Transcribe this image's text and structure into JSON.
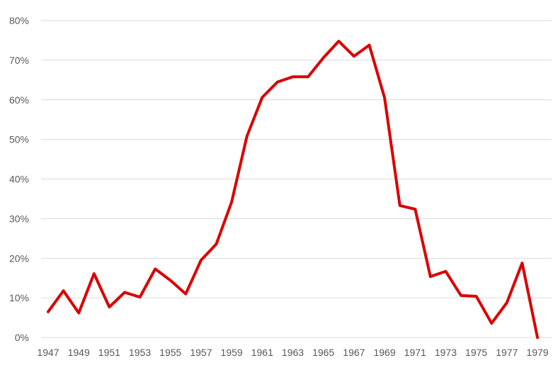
{
  "chart_data": {
    "type": "line",
    "title": "",
    "xlabel": "",
    "ylabel": "",
    "x": [
      1947,
      1948,
      1949,
      1950,
      1951,
      1952,
      1953,
      1954,
      1955,
      1956,
      1957,
      1958,
      1959,
      1960,
      1961,
      1962,
      1963,
      1964,
      1965,
      1966,
      1967,
      1968,
      1969,
      1970,
      1971,
      1972,
      1973,
      1974,
      1975,
      1976,
      1977,
      1978,
      1979
    ],
    "x_tick_labels": [
      "1947",
      "1949",
      "1951",
      "1953",
      "1955",
      "1957",
      "1959",
      "1961",
      "1963",
      "1965",
      "1967",
      "1969",
      "1971",
      "1973",
      "1975",
      "1977",
      "1979"
    ],
    "y_tick_labels": [
      "0%",
      "10%",
      "20%",
      "30%",
      "40%",
      "50%",
      "60%",
      "70%",
      "80%"
    ],
    "ylim": [
      0,
      80
    ],
    "y_unit": "percent",
    "grid": "horizontal",
    "legend": "none",
    "series": [
      {
        "color": "#d90000",
        "values": [
          6.5,
          11.8,
          6.2,
          16.1,
          7.7,
          11.4,
          10.2,
          17.3,
          14.4,
          11.0,
          19.5,
          23.6,
          34.2,
          50.8,
          60.6,
          64.5,
          65.8,
          65.8,
          70.6,
          74.8,
          71.0,
          73.8,
          60.5,
          33.3,
          32.4,
          15.4,
          16.7,
          10.6,
          10.4,
          3.6,
          8.8,
          18.8,
          0.0
        ]
      }
    ]
  }
}
